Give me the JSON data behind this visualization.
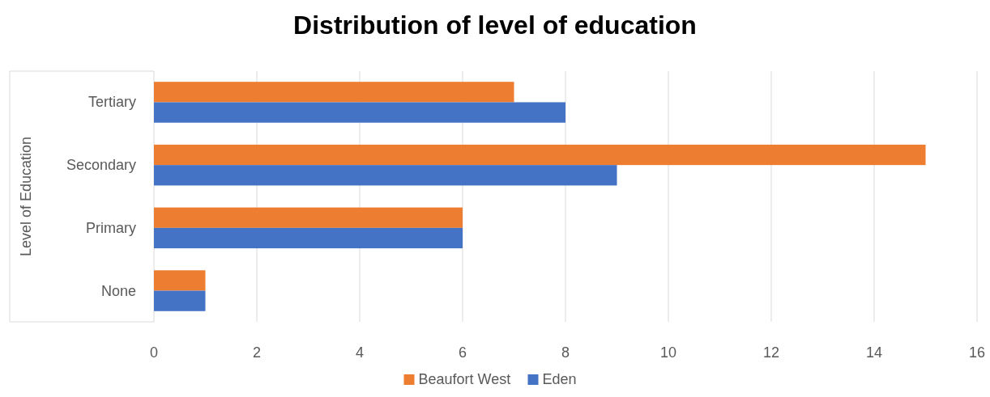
{
  "chart_data": {
    "type": "bar",
    "orientation": "horizontal",
    "title": "Distribution of level of education",
    "ylabel": "Level of Education",
    "categories": [
      "Tertiary",
      "Secondary",
      "Primary",
      "None"
    ],
    "series": [
      {
        "name": "Beaufort West",
        "color": "#ed7d31",
        "values": [
          7,
          15,
          6,
          1
        ]
      },
      {
        "name": "Eden",
        "color": "#4472c4",
        "values": [
          8,
          9,
          6,
          1
        ]
      }
    ],
    "xlim": [
      0,
      16
    ],
    "xticks": [
      0,
      2,
      4,
      6,
      8,
      10,
      12,
      14,
      16
    ],
    "grid": "x",
    "legend": "bottom"
  }
}
